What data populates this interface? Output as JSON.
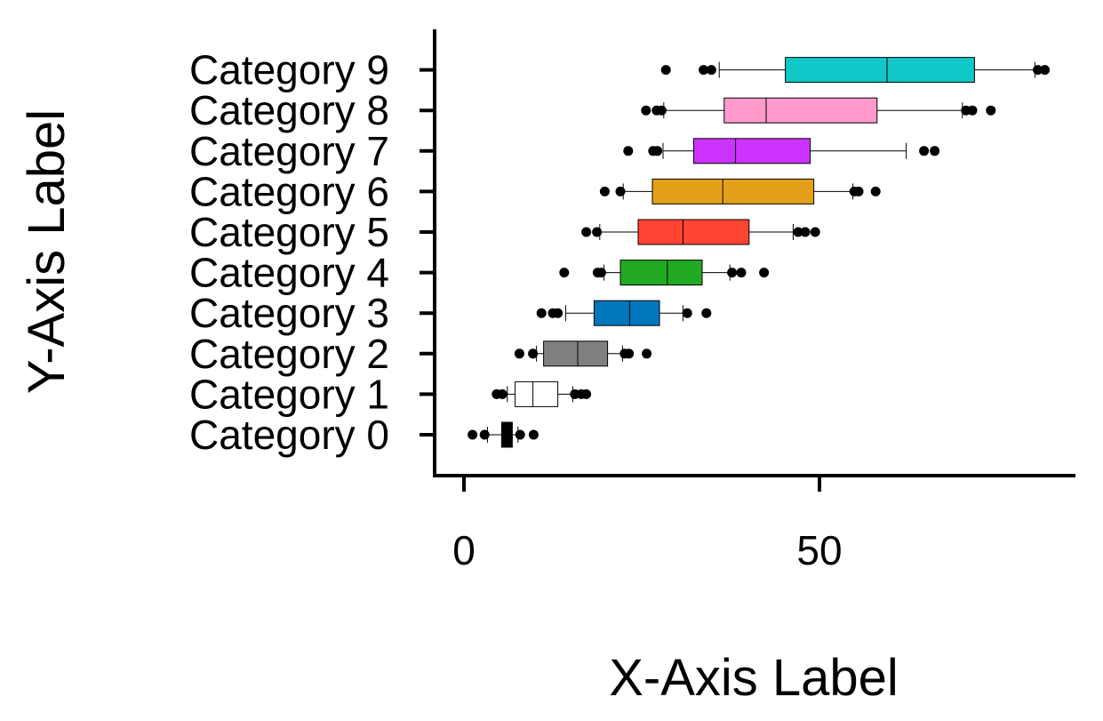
{
  "chart_data": {
    "type": "boxplot",
    "orientation": "horizontal",
    "title": "",
    "xlabel": "X-Axis Label",
    "ylabel": "Y-Axis Label",
    "xlim": [
      -4,
      86
    ],
    "xticks": [
      0,
      50
    ],
    "xtick_labels": [
      "0",
      "50"
    ],
    "grid": false,
    "legend": "none",
    "categories": [
      "Category 0",
      "Category 1",
      "Category 2",
      "Category 3",
      "Category 4",
      "Category 5",
      "Category 6",
      "Category 7",
      "Category 8",
      "Category 9"
    ],
    "series": [
      {
        "name": "Category 0",
        "color": "#000000",
        "whisker_low": 3.3,
        "q1": 5.3,
        "median": 6.0,
        "q3": 6.8,
        "whisker_high": 7.6,
        "outliers": [
          1.2,
          2.9,
          7.9,
          9.8
        ]
      },
      {
        "name": "Category 1",
        "color": "#ffffff",
        "whisker_low": 6.1,
        "q1": 7.2,
        "median": 9.7,
        "q3": 13.2,
        "whisker_high": 15.3,
        "outliers": [
          4.6,
          5.4,
          15.6,
          16.5,
          17.2
        ]
      },
      {
        "name": "Category 2",
        "color": "#808080",
        "whisker_low": 10.2,
        "q1": 11.2,
        "median": 16.0,
        "q3": 20.2,
        "whisker_high": 22.3,
        "outliers": [
          7.8,
          9.7,
          22.6,
          23.2,
          25.7
        ]
      },
      {
        "name": "Category 3",
        "color": "#0077bb",
        "whisker_low": 14.3,
        "q1": 18.3,
        "median": 23.3,
        "q3": 27.5,
        "whisker_high": 30.8,
        "outliers": [
          10.9,
          12.5,
          13.2,
          31.4,
          34.1
        ]
      },
      {
        "name": "Category 4",
        "color": "#22aa22",
        "whisker_low": 19.7,
        "q1": 22.0,
        "median": 28.6,
        "q3": 33.5,
        "whisker_high": 37.4,
        "outliers": [
          14.1,
          18.8,
          19.3,
          37.7,
          39.0,
          42.2
        ]
      },
      {
        "name": "Category 5",
        "color": "#ff4433",
        "whisker_low": 19.1,
        "q1": 24.5,
        "median": 30.8,
        "q3": 40.1,
        "whisker_high": 46.3,
        "outliers": [
          17.2,
          18.7,
          47.0,
          48.0,
          49.4
        ]
      },
      {
        "name": "Category 6",
        "color": "#e5a019",
        "whisker_low": 22.4,
        "q1": 26.5,
        "median": 36.4,
        "q3": 49.2,
        "whisker_high": 54.7,
        "outliers": [
          19.8,
          22.0,
          54.9,
          55.5,
          57.9
        ]
      },
      {
        "name": "Category 7",
        "color": "#cc33ff",
        "whisker_low": 28.0,
        "q1": 32.3,
        "median": 38.2,
        "q3": 48.7,
        "whisker_high": 62.2,
        "outliers": [
          23.1,
          26.6,
          27.2,
          64.7,
          66.2
        ]
      },
      {
        "name": "Category 8",
        "color": "#ff99cc",
        "whisker_low": 28.1,
        "q1": 36.6,
        "median": 42.5,
        "q3": 58.1,
        "whisker_high": 70.1,
        "outliers": [
          25.6,
          27.1,
          27.8,
          70.6,
          71.5,
          74.1
        ]
      },
      {
        "name": "Category 9",
        "color": "#11c7c7",
        "whisker_low": 35.9,
        "q1": 45.2,
        "median": 59.5,
        "q3": 71.8,
        "whisker_high": 80.3,
        "outliers": [
          28.4,
          33.7,
          34.8,
          80.7,
          81.7
        ]
      }
    ]
  }
}
